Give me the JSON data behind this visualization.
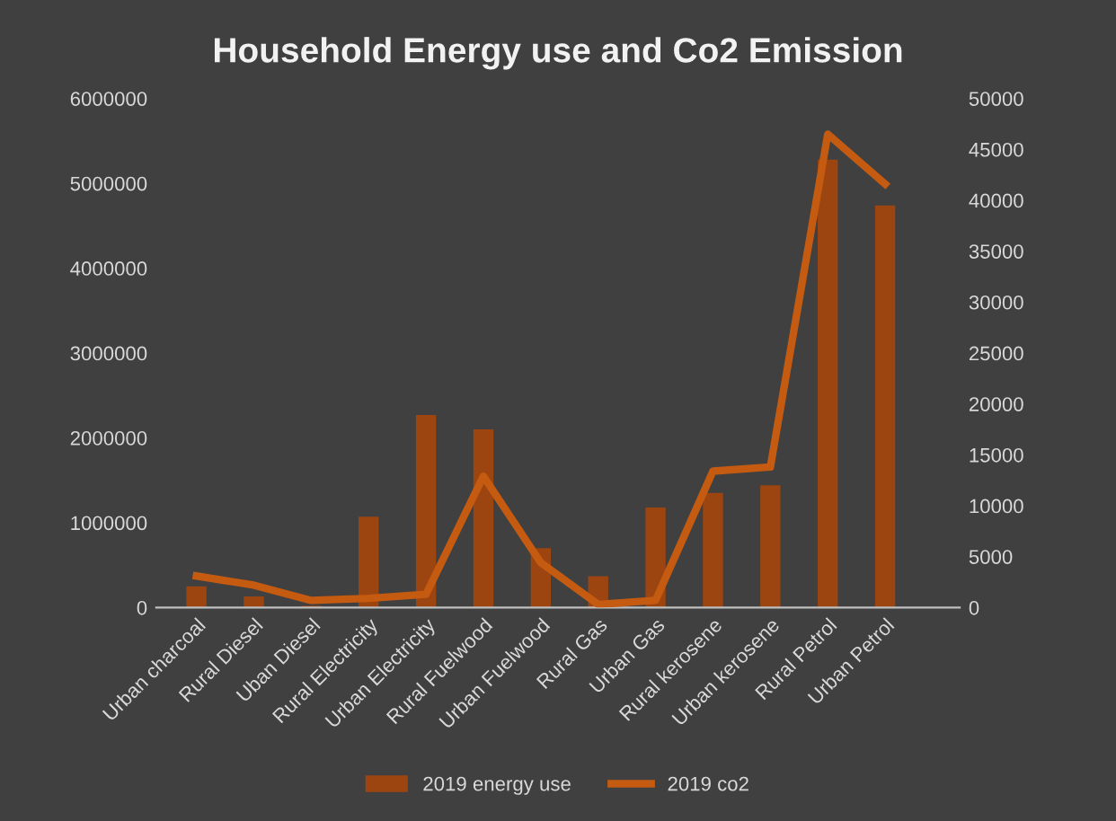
{
  "chart_data": {
    "type": "bar",
    "title": "Household Energy use and Co2 Emission",
    "categories": [
      "Urban charcoal",
      "Rural Diesel",
      "Uban Diesel",
      "Rural Electricity",
      "Urban Electricity",
      "Rural Fuelwood",
      "Urban Fuelwood",
      "Rural Gas",
      "Urban Gas",
      "Rural kerosene",
      "Urban kerosene",
      "Rural Petrol",
      "Urban Petrol"
    ],
    "series": [
      {
        "name": "2019 energy use",
        "color": "#9c4510",
        "values": [
          250000,
          130000,
          20000,
          1070000,
          2270000,
          2100000,
          700000,
          370000,
          1180000,
          1350000,
          1440000,
          5280000,
          4740000
        ]
      },
      {
        "name": "2019 co2",
        "type": "line",
        "axis": "y2",
        "color": "#c55a11",
        "values": [
          3100,
          2200,
          700,
          900,
          1300,
          12900,
          4400,
          300,
          700,
          13400,
          13800,
          46500,
          41600
        ]
      }
    ],
    "ylim": [
      0,
      6000000
    ],
    "yticks": [
      0,
      1000000,
      2000000,
      3000000,
      4000000,
      5000000,
      6000000
    ],
    "y2lim": [
      0,
      50000
    ],
    "y2ticks": [
      0,
      5000,
      10000,
      15000,
      20000,
      25000,
      30000,
      35000,
      40000,
      45000,
      50000
    ],
    "grid": false,
    "legend": "bottom",
    "marker": "none",
    "line_style": "solid"
  }
}
